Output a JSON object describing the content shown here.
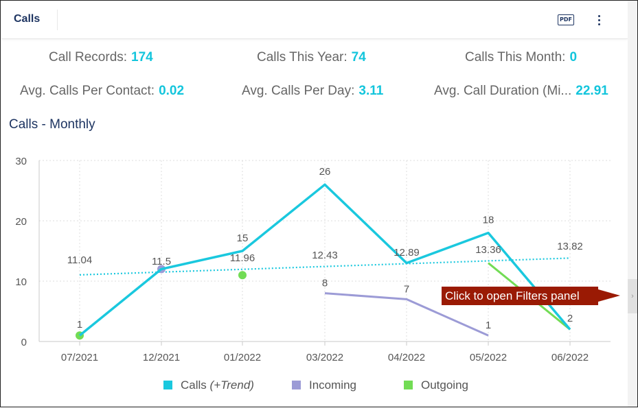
{
  "header": {
    "title": "Calls",
    "pdf_label": "PDF"
  },
  "stats": {
    "call_records": {
      "label": "Call Records:",
      "value": "174"
    },
    "calls_this_year": {
      "label": "Calls This Year:",
      "value": "74"
    },
    "calls_this_month": {
      "label": "Calls This Month:",
      "value": "0"
    },
    "avg_calls_per_contact": {
      "label": "Avg. Calls Per Contact:",
      "value": "0.02"
    },
    "avg_calls_per_day": {
      "label": "Avg. Calls Per Day:",
      "value": "3.11"
    },
    "avg_call_duration": {
      "label": "Avg. Call Duration (Mi...",
      "value": "22.91"
    }
  },
  "chart_title": "Calls - Monthly",
  "callout": "Click to open Filters panel",
  "filter_tab_icon": "chevron-right-icon",
  "legend": {
    "calls": "Calls",
    "calls_suffix": "(+Trend)",
    "incoming": "Incoming",
    "outgoing": "Outgoing"
  },
  "colors": {
    "calls": "#1ac8de",
    "incoming": "#9c9bd6",
    "outgoing": "#72dc55",
    "stat_value": "#13c5dc",
    "title": "#1d3461",
    "callout": "#9a1a04"
  },
  "chart_data": {
    "type": "line",
    "title": "Calls - Monthly",
    "categories": [
      "07/2021",
      "12/2021",
      "01/2022",
      "03/2022",
      "04/2022",
      "05/2022",
      "06/2022"
    ],
    "ylim": [
      0,
      30
    ],
    "yticks": [
      0,
      10,
      20,
      30
    ],
    "grid": true,
    "legend_position": "bottom",
    "series": [
      {
        "name": "Calls",
        "values": [
          1,
          12,
          15,
          26,
          13,
          18,
          2
        ],
        "labels": [
          "1",
          "",
          "15",
          "26",
          "",
          "18",
          "2"
        ]
      },
      {
        "name": "Trend",
        "values": [
          11.04,
          11.5,
          11.96,
          12.43,
          12.89,
          13.36,
          13.82
        ],
        "labels": [
          "11.04",
          "11.5",
          "11.96",
          "12.43",
          "12.89",
          "13.36",
          "13.82"
        ]
      },
      {
        "name": "Incoming",
        "values": [
          null,
          12,
          null,
          8,
          7,
          1,
          null
        ],
        "labels": [
          "",
          "",
          "",
          "8",
          "7",
          "1",
          ""
        ]
      },
      {
        "name": "Outgoing",
        "values": [
          1,
          null,
          11,
          null,
          null,
          13,
          2
        ],
        "labels": [
          "",
          "",
          "",
          "",
          "",
          "",
          ""
        ]
      }
    ]
  }
}
